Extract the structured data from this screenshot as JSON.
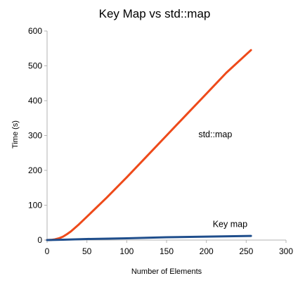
{
  "chart_data": {
    "type": "line",
    "title": "Key Map vs std::map",
    "xlabel": "Number of Elements",
    "ylabel": "Time (s)",
    "xlim": [
      0,
      300
    ],
    "ylim": [
      0,
      600
    ],
    "xticks": [
      0,
      50,
      100,
      150,
      200,
      250,
      300
    ],
    "yticks": [
      0,
      100,
      200,
      300,
      400,
      500,
      600
    ],
    "grid": false,
    "legend": "none",
    "series": [
      {
        "name": "std::map",
        "color": "#ee4a1a",
        "x": [
          0,
          5,
          10,
          15,
          20,
          25,
          30,
          40,
          50,
          75,
          100,
          125,
          150,
          175,
          200,
          225,
          256
        ],
        "y": [
          0,
          0.5,
          2,
          5,
          10,
          17,
          25,
          45,
          67,
          122,
          180,
          240,
          300,
          360,
          420,
          480,
          545
        ]
      },
      {
        "name": "Key map",
        "color": "#1f4e8c",
        "x": [
          0,
          20,
          50,
          100,
          150,
          200,
          256
        ],
        "y": [
          0,
          1,
          3,
          5,
          8,
          10,
          12
        ]
      }
    ],
    "annotations": [
      {
        "text": "std::map",
        "x": 190,
        "y": 295
      },
      {
        "text": "Key map",
        "x": 208,
        "y": 37
      }
    ]
  }
}
